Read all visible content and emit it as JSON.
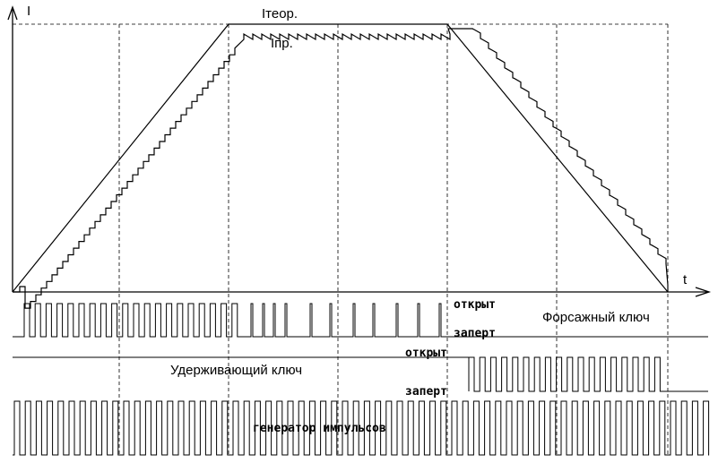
{
  "labels": {
    "y_axis": "I",
    "x_axis": "t",
    "i_theor": "Iтеор.",
    "i_pr": "Iпр.",
    "open_1": "открыт",
    "closed_1": "заперт",
    "forcing_key": "Форсажный ключ",
    "open_2": "открыт",
    "holding_key": "Удерживающий ключ",
    "closed_2": "заперт",
    "pulse_generator": "генератор импульсов"
  }
}
